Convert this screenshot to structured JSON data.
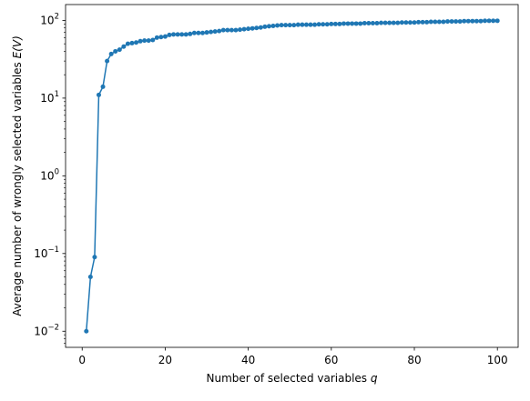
{
  "chart_data": {
    "type": "line",
    "title": "",
    "xlabel_prefix": "Number of selected variables ",
    "xlabel_var": "q",
    "ylabel_prefix": "Average number of wrongly selected variables ",
    "ylabel_var": "E(V)",
    "x_ticks": [
      0,
      20,
      40,
      60,
      80,
      100
    ],
    "x_tick_labels": [
      "0",
      "20",
      "40",
      "60",
      "80",
      "100"
    ],
    "y_ticks": [
      0.01,
      0.1,
      1,
      10,
      100
    ],
    "y_tick_bases": [
      "10",
      "10",
      "10",
      "10",
      "10"
    ],
    "y_tick_exps": [
      "−2",
      "−1",
      "0",
      "1",
      "2"
    ],
    "xlim": [
      -4,
      105
    ],
    "ylim": [
      0.0062,
      160
    ],
    "y_scale": "log",
    "grid": false,
    "legend": "none",
    "series": [
      {
        "color": "#1f77b4",
        "marker": "circle",
        "x": [
          1,
          2,
          3,
          4,
          5,
          6,
          7,
          8,
          9,
          10,
          11,
          12,
          13,
          14,
          15,
          16,
          17,
          18,
          19,
          20,
          21,
          22,
          23,
          24,
          25,
          26,
          27,
          28,
          29,
          30,
          31,
          32,
          33,
          34,
          35,
          36,
          37,
          38,
          39,
          40,
          41,
          42,
          43,
          44,
          45,
          46,
          47,
          48,
          49,
          50,
          51,
          52,
          53,
          54,
          55,
          56,
          57,
          58,
          59,
          60,
          61,
          62,
          63,
          64,
          65,
          66,
          67,
          68,
          69,
          70,
          71,
          72,
          73,
          74,
          75,
          76,
          77,
          78,
          79,
          80,
          81,
          82,
          83,
          84,
          85,
          86,
          87,
          88,
          89,
          90,
          91,
          92,
          93,
          94,
          95,
          96,
          97,
          98,
          99,
          100
        ],
        "y": [
          0.01,
          0.05,
          0.09,
          11,
          14,
          30,
          37,
          40,
          42,
          46,
          50,
          51,
          52,
          54,
          55,
          55,
          56,
          60,
          61,
          62,
          65,
          66,
          66,
          66,
          66,
          67,
          69,
          69,
          69,
          70,
          71,
          72,
          73,
          75,
          75,
          75,
          75,
          76,
          77,
          78,
          79,
          80,
          81,
          83,
          84,
          85,
          86,
          87,
          87,
          87,
          87,
          88,
          88,
          88,
          88,
          88,
          89,
          89,
          89,
          90,
          90,
          90,
          91,
          91,
          91,
          91,
          91,
          92,
          92,
          92,
          92,
          93,
          93,
          93,
          93,
          93,
          94,
          94,
          94,
          94,
          95,
          95,
          95,
          96,
          96,
          96,
          96,
          97,
          97,
          97,
          97,
          98,
          98,
          98,
          98,
          98,
          99,
          99,
          99,
          99
        ]
      }
    ]
  }
}
